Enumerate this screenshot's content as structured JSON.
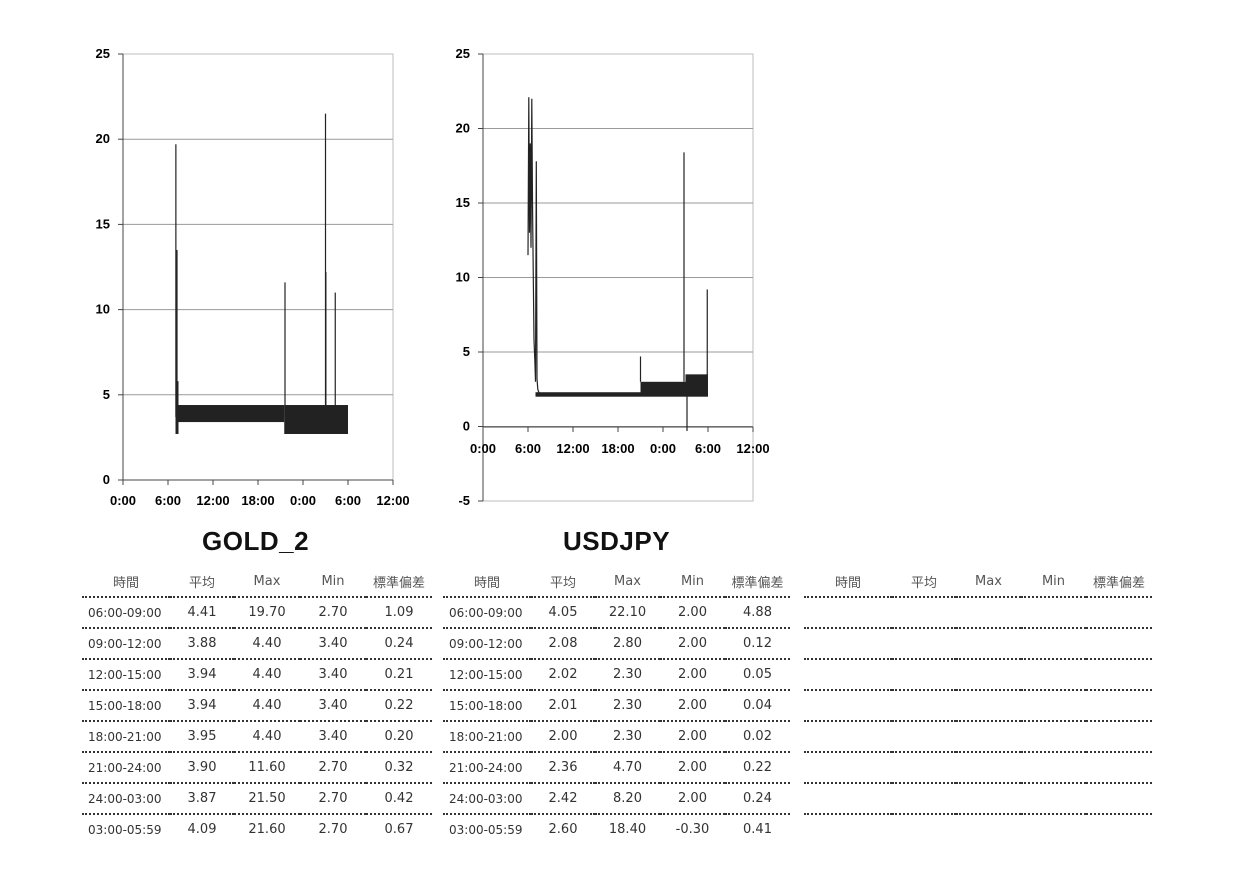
{
  "chart_data": [
    {
      "type": "line",
      "title": "GOLD_2",
      "color": "#222222",
      "ylim": [
        0,
        25
      ],
      "yticks": [
        "0",
        "5",
        "10",
        "15",
        "20",
        "25"
      ],
      "xlim": [
        0,
        36
      ],
      "xticks": [
        "0:00",
        "6:00",
        "12:00",
        "18:00",
        "0:00",
        "6:00",
        "12:00"
      ],
      "grid": true,
      "bands": [
        {
          "x": [
            7.0,
            7.4
          ],
          "low": 2.7,
          "high": 5.8
        },
        {
          "x": [
            7.4,
            21.5
          ],
          "low": 3.4,
          "high": 4.4
        },
        {
          "x": [
            21.5,
            30.0
          ],
          "low": 2.7,
          "high": 4.4
        }
      ],
      "spikes": [
        {
          "x": 7.05,
          "y": 19.7
        },
        {
          "x": 7.2,
          "y": 13.5
        },
        {
          "x": 21.6,
          "y": 11.6
        },
        {
          "x": 27.0,
          "y": 21.5
        },
        {
          "x": 27.05,
          "y": 12.2
        },
        {
          "x": 28.3,
          "y": 11.0
        }
      ]
    },
    {
      "type": "line",
      "title": "USDJPY",
      "color": "#222222",
      "ylim": [
        -5,
        25
      ],
      "yticks": [
        "-5",
        "0",
        "5",
        "10",
        "15",
        "20",
        "25"
      ],
      "xlim": [
        0,
        36
      ],
      "xticks": [
        "0:00",
        "6:00",
        "12:00",
        "18:00",
        "0:00",
        "6:00",
        "12:00"
      ],
      "grid": true,
      "bands": [
        {
          "x": [
            7.0,
            21.0
          ],
          "low": 2.0,
          "high": 2.3
        },
        {
          "x": [
            21.0,
            27.0
          ],
          "low": 2.0,
          "high": 3.0
        },
        {
          "x": [
            27.0,
            30.0
          ],
          "low": 2.0,
          "high": 3.5
        }
      ],
      "lines": [
        [
          [
            6.0,
            11.5
          ],
          [
            6.1,
            22.1
          ],
          [
            6.2,
            13.0
          ],
          [
            6.3,
            19.0
          ],
          [
            6.4,
            12.0
          ],
          [
            6.5,
            22.0
          ],
          [
            6.6,
            15.0
          ],
          [
            6.7,
            10.0
          ],
          [
            6.8,
            5.8
          ],
          [
            6.9,
            4.5
          ],
          [
            7.0,
            3.0
          ],
          [
            7.1,
            17.8
          ],
          [
            7.2,
            3.2
          ],
          [
            7.3,
            2.5
          ],
          [
            7.5,
            2.2
          ]
        ]
      ],
      "spikes": [
        {
          "x": 21.0,
          "y": 4.7
        },
        {
          "x": 26.8,
          "y": 18.4
        },
        {
          "x": 27.2,
          "y": -0.3
        },
        {
          "x": 29.9,
          "y": 9.2
        }
      ]
    }
  ],
  "tables": [
    {
      "headers": [
        "時間",
        "平均",
        "Max",
        "Min",
        "標準偏差"
      ],
      "rows": [
        [
          "06:00-09:00",
          "4.41",
          "19.70",
          "2.70",
          "1.09"
        ],
        [
          "09:00-12:00",
          "3.88",
          "4.40",
          "3.40",
          "0.24"
        ],
        [
          "12:00-15:00",
          "3.94",
          "4.40",
          "3.40",
          "0.21"
        ],
        [
          "15:00-18:00",
          "3.94",
          "4.40",
          "3.40",
          "0.22"
        ],
        [
          "18:00-21:00",
          "3.95",
          "4.40",
          "3.40",
          "0.20"
        ],
        [
          "21:00-24:00",
          "3.90",
          "11.60",
          "2.70",
          "0.32"
        ],
        [
          "24:00-03:00",
          "3.87",
          "21.50",
          "2.70",
          "0.42"
        ],
        [
          "03:00-05:59",
          "4.09",
          "21.60",
          "2.70",
          "0.67"
        ]
      ]
    },
    {
      "headers": [
        "時間",
        "平均",
        "Max",
        "Min",
        "標準偏差"
      ],
      "rows": [
        [
          "06:00-09:00",
          "4.05",
          "22.10",
          "2.00",
          "4.88"
        ],
        [
          "09:00-12:00",
          "2.08",
          "2.80",
          "2.00",
          "0.12"
        ],
        [
          "12:00-15:00",
          "2.02",
          "2.30",
          "2.00",
          "0.05"
        ],
        [
          "15:00-18:00",
          "2.01",
          "2.30",
          "2.00",
          "0.04"
        ],
        [
          "18:00-21:00",
          "2.00",
          "2.30",
          "2.00",
          "0.02"
        ],
        [
          "21:00-24:00",
          "2.36",
          "4.70",
          "2.00",
          "0.22"
        ],
        [
          "24:00-03:00",
          "2.42",
          "8.20",
          "2.00",
          "0.24"
        ],
        [
          "03:00-05:59",
          "2.60",
          "18.40",
          "-0.30",
          "0.41"
        ]
      ]
    },
    {
      "headers": [
        "時間",
        "平均",
        "Max",
        "Min",
        "標準偏差"
      ],
      "rows": [
        [
          "",
          "",
          "",
          "",
          ""
        ],
        [
          "",
          "",
          "",
          "",
          ""
        ],
        [
          "",
          "",
          "",
          "",
          ""
        ],
        [
          "",
          "",
          "",
          "",
          ""
        ],
        [
          "",
          "",
          "",
          "",
          ""
        ],
        [
          "",
          "",
          "",
          "",
          ""
        ],
        [
          "",
          "",
          "",
          "",
          ""
        ],
        [
          "",
          "",
          "",
          "",
          ""
        ]
      ]
    }
  ]
}
